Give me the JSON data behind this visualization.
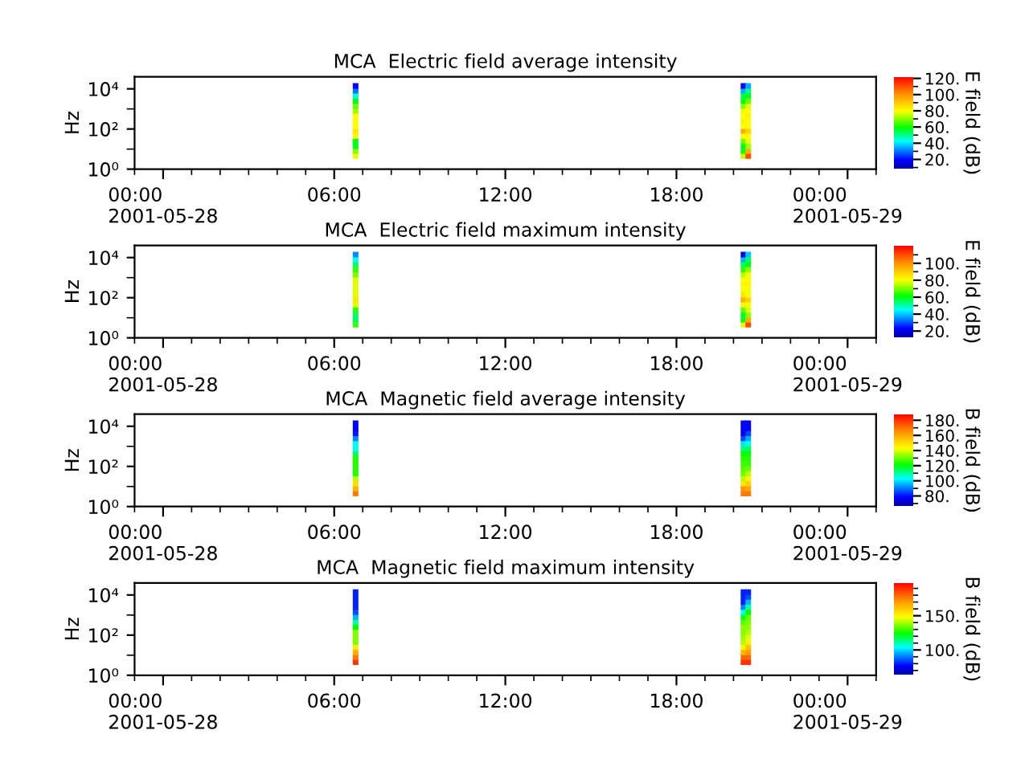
{
  "chart_data": [
    {
      "type": "scatter",
      "title": "MCA  Electric field average intensity",
      "ylabel": "Hz",
      "clabel": "E field (dB)",
      "marker": "square",
      "log": "y",
      "xlim": [
        "2001-05-27T23:00",
        "2001-05-29T01:00"
      ],
      "xticks": [
        {
          "value": "2001-05-27T23:00",
          "label": null
        },
        {
          "value": "2001-05-28T00:00",
          "label": "00:00\n2001-05-28"
        },
        {
          "value": "2001-05-28T01:00",
          "label": null
        },
        {
          "value": "2001-05-28T02:00",
          "label": null
        },
        {
          "value": "2001-05-28T03:00",
          "label": null
        },
        {
          "value": "2001-05-28T04:00",
          "label": null
        },
        {
          "value": "2001-05-28T05:00",
          "label": null
        },
        {
          "value": "2001-05-28T06:00",
          "label": "06:00"
        },
        {
          "value": "2001-05-28T07:00",
          "label": null
        },
        {
          "value": "2001-05-28T08:00",
          "label": null
        },
        {
          "value": "2001-05-28T09:00",
          "label": null
        },
        {
          "value": "2001-05-28T10:00",
          "label": null
        },
        {
          "value": "2001-05-28T11:00",
          "label": null
        },
        {
          "value": "2001-05-28T12:00",
          "label": "12:00"
        },
        {
          "value": "2001-05-28T13:00",
          "label": null
        },
        {
          "value": "2001-05-28T14:00",
          "label": null
        },
        {
          "value": "2001-05-28T15:00",
          "label": null
        },
        {
          "value": "2001-05-28T16:00",
          "label": null
        },
        {
          "value": "2001-05-28T17:00",
          "label": null
        },
        {
          "value": "2001-05-28T18:00",
          "label": "18:00"
        },
        {
          "value": "2001-05-28T19:00",
          "label": null
        },
        {
          "value": "2001-05-28T20:00",
          "label": null
        },
        {
          "value": "2001-05-28T21:00",
          "label": null
        },
        {
          "value": "2001-05-28T22:00",
          "label": null
        },
        {
          "value": "2001-05-28T23:00",
          "label": null
        },
        {
          "value": "2001-05-29T00:00",
          "label": "00:00\n2001-05-29"
        },
        {
          "value": "2001-05-29T01:00",
          "label": null
        }
      ],
      "ylim": [
        1,
        40000
      ],
      "yticks": [
        {
          "value": 1,
          "label": "10⁰"
        },
        {
          "value": 10,
          "label": null
        },
        {
          "value": 100,
          "label": "10²"
        },
        {
          "value": 1000,
          "label": null
        },
        {
          "value": 10000,
          "label": "10⁴"
        }
      ],
      "clim": [
        8,
        122
      ],
      "cticks": [
        {
          "value": 10,
          "label": null
        },
        {
          "value": 20,
          "label": "20."
        },
        {
          "value": 30,
          "label": null
        },
        {
          "value": 40,
          "label": "40."
        },
        {
          "value": 50,
          "label": null
        },
        {
          "value": 60,
          "label": "60."
        },
        {
          "value": 70,
          "label": null
        },
        {
          "value": 80,
          "label": "80."
        },
        {
          "value": 90,
          "label": null
        },
        {
          "value": 100,
          "label": "100."
        },
        {
          "value": 110,
          "label": null
        },
        {
          "value": 120,
          "label": "120."
        }
      ],
      "x": [
        "2001-05-28T06:45",
        "2001-05-28T06:45",
        "2001-05-28T06:45",
        "2001-05-28T06:45",
        "2001-05-28T06:45",
        "2001-05-28T06:45",
        "2001-05-28T06:45",
        "2001-05-28T06:45",
        "2001-05-28T06:45",
        "2001-05-28T06:45",
        "2001-05-28T06:45",
        "2001-05-28T06:45",
        "2001-05-28T06:45",
        "2001-05-28T06:45",
        "2001-05-28T06:45",
        "2001-05-28T20:21",
        "2001-05-28T20:21",
        "2001-05-28T20:21",
        "2001-05-28T20:21",
        "2001-05-28T20:21",
        "2001-05-28T20:21",
        "2001-05-28T20:21",
        "2001-05-28T20:21",
        "2001-05-28T20:21",
        "2001-05-28T20:21",
        "2001-05-28T20:21",
        "2001-05-28T20:21",
        "2001-05-28T20:21",
        "2001-05-28T20:21",
        "2001-05-28T20:21",
        "2001-05-28T20:31",
        "2001-05-28T20:31",
        "2001-05-28T20:31",
        "2001-05-28T20:31",
        "2001-05-28T20:31",
        "2001-05-28T20:31",
        "2001-05-28T20:31",
        "2001-05-28T20:31",
        "2001-05-28T20:31",
        "2001-05-28T20:31",
        "2001-05-28T20:31",
        "2001-05-28T20:31",
        "2001-05-28T20:31",
        "2001-05-28T20:31",
        "2001-05-28T20:31"
      ],
      "values": [
        4.5,
        8,
        14,
        25,
        45,
        80,
        140,
        250,
        450,
        800,
        1400,
        2500,
        4500,
        8000,
        14000,
        4.5,
        8,
        14,
        25,
        45,
        80,
        140,
        250,
        450,
        800,
        1400,
        2500,
        4500,
        8000,
        14000,
        4.5,
        8,
        14,
        25,
        45,
        80,
        140,
        250,
        450,
        800,
        1400,
        2500,
        4500,
        8000,
        14000
      ],
      "cvalues": [
        78,
        70,
        58,
        58,
        80,
        84,
        80,
        80,
        80,
        72,
        68,
        58,
        45,
        30,
        20,
        75,
        60,
        58,
        68,
        80,
        95,
        80,
        82,
        80,
        78,
        70,
        58,
        55,
        35,
        20,
        110,
        95,
        72,
        78,
        80,
        88,
        80,
        80,
        82,
        80,
        78,
        68,
        58,
        50,
        35
      ]
    },
    {
      "type": "scatter",
      "title": "MCA  Electric field maximum intensity",
      "ylabel": "Hz",
      "clabel": "E field (dB)",
      "marker": "square",
      "log": "y",
      "xlim": [
        "2001-05-27T23:00",
        "2001-05-29T01:00"
      ],
      "xticks": [
        {
          "value": "2001-05-27T23:00",
          "label": null
        },
        {
          "value": "2001-05-28T00:00",
          "label": "00:00\n2001-05-28"
        },
        {
          "value": "2001-05-28T01:00",
          "label": null
        },
        {
          "value": "2001-05-28T02:00",
          "label": null
        },
        {
          "value": "2001-05-28T03:00",
          "label": null
        },
        {
          "value": "2001-05-28T04:00",
          "label": null
        },
        {
          "value": "2001-05-28T05:00",
          "label": null
        },
        {
          "value": "2001-05-28T06:00",
          "label": "06:00"
        },
        {
          "value": "2001-05-28T07:00",
          "label": null
        },
        {
          "value": "2001-05-28T08:00",
          "label": null
        },
        {
          "value": "2001-05-28T09:00",
          "label": null
        },
        {
          "value": "2001-05-28T10:00",
          "label": null
        },
        {
          "value": "2001-05-28T11:00",
          "label": null
        },
        {
          "value": "2001-05-28T12:00",
          "label": "12:00"
        },
        {
          "value": "2001-05-28T13:00",
          "label": null
        },
        {
          "value": "2001-05-28T14:00",
          "label": null
        },
        {
          "value": "2001-05-28T15:00",
          "label": null
        },
        {
          "value": "2001-05-28T16:00",
          "label": null
        },
        {
          "value": "2001-05-28T17:00",
          "label": null
        },
        {
          "value": "2001-05-28T18:00",
          "label": "18:00"
        },
        {
          "value": "2001-05-28T19:00",
          "label": null
        },
        {
          "value": "2001-05-28T20:00",
          "label": null
        },
        {
          "value": "2001-05-28T21:00",
          "label": null
        },
        {
          "value": "2001-05-28T22:00",
          "label": null
        },
        {
          "value": "2001-05-28T23:00",
          "label": null
        },
        {
          "value": "2001-05-29T00:00",
          "label": "00:00\n2001-05-29"
        },
        {
          "value": "2001-05-29T01:00",
          "label": null
        }
      ],
      "ylim": [
        1,
        40000
      ],
      "yticks": [
        {
          "value": 1,
          "label": "10⁰"
        },
        {
          "value": 10,
          "label": null
        },
        {
          "value": 100,
          "label": "10²"
        },
        {
          "value": 1000,
          "label": null
        },
        {
          "value": 10000,
          "label": "10⁴"
        }
      ],
      "clim": [
        12,
        121
      ],
      "cticks": [
        {
          "value": 20,
          "label": "20."
        },
        {
          "value": 30,
          "label": null
        },
        {
          "value": 40,
          "label": "40."
        },
        {
          "value": 50,
          "label": null
        },
        {
          "value": 60,
          "label": "60."
        },
        {
          "value": 70,
          "label": null
        },
        {
          "value": 80,
          "label": "80."
        },
        {
          "value": 90,
          "label": null
        },
        {
          "value": 100,
          "label": "100."
        },
        {
          "value": 110,
          "label": null
        }
      ],
      "x": [
        "2001-05-28T06:45",
        "2001-05-28T06:45",
        "2001-05-28T06:45",
        "2001-05-28T06:45",
        "2001-05-28T06:45",
        "2001-05-28T06:45",
        "2001-05-28T06:45",
        "2001-05-28T06:45",
        "2001-05-28T06:45",
        "2001-05-28T06:45",
        "2001-05-28T06:45",
        "2001-05-28T06:45",
        "2001-05-28T06:45",
        "2001-05-28T06:45",
        "2001-05-28T06:45",
        "2001-05-28T20:21",
        "2001-05-28T20:21",
        "2001-05-28T20:21",
        "2001-05-28T20:21",
        "2001-05-28T20:21",
        "2001-05-28T20:21",
        "2001-05-28T20:21",
        "2001-05-28T20:21",
        "2001-05-28T20:21",
        "2001-05-28T20:21",
        "2001-05-28T20:21",
        "2001-05-28T20:21",
        "2001-05-28T20:21",
        "2001-05-28T20:21",
        "2001-05-28T20:21",
        "2001-05-28T20:31",
        "2001-05-28T20:31",
        "2001-05-28T20:31",
        "2001-05-28T20:31",
        "2001-05-28T20:31",
        "2001-05-28T20:31",
        "2001-05-28T20:31",
        "2001-05-28T20:31",
        "2001-05-28T20:31",
        "2001-05-28T20:31",
        "2001-05-28T20:31",
        "2001-05-28T20:31",
        "2001-05-28T20:31",
        "2001-05-28T20:31",
        "2001-05-28T20:31"
      ],
      "values": [
        4.5,
        8,
        14,
        25,
        45,
        80,
        140,
        250,
        450,
        800,
        1400,
        2500,
        4500,
        8000,
        14000,
        4.5,
        8,
        14,
        25,
        45,
        80,
        140,
        250,
        450,
        800,
        1400,
        2500,
        4500,
        8000,
        14000,
        4.5,
        8,
        14,
        25,
        45,
        80,
        140,
        250,
        450,
        800,
        1400,
        2500,
        4500,
        8000,
        14000
      ],
      "cvalues": [
        65,
        55,
        55,
        65,
        78,
        85,
        78,
        78,
        78,
        78,
        70,
        65,
        55,
        45,
        35,
        78,
        60,
        58,
        68,
        82,
        95,
        85,
        80,
        82,
        80,
        75,
        65,
        55,
        38,
        20,
        110,
        95,
        72,
        78,
        80,
        88,
        80,
        80,
        82,
        80,
        80,
        72,
        60,
        55,
        40
      ]
    },
    {
      "type": "scatter",
      "title": "MCA  Magnetic field average intensity",
      "ylabel": "Hz",
      "clabel": "B field (dB)",
      "marker": "square",
      "log": "y",
      "xlim": [
        "2001-05-27T23:00",
        "2001-05-29T01:00"
      ],
      "xticks": [
        {
          "value": "2001-05-27T23:00",
          "label": null
        },
        {
          "value": "2001-05-28T00:00",
          "label": "00:00\n2001-05-28"
        },
        {
          "value": "2001-05-28T01:00",
          "label": null
        },
        {
          "value": "2001-05-28T02:00",
          "label": null
        },
        {
          "value": "2001-05-28T03:00",
          "label": null
        },
        {
          "value": "2001-05-28T04:00",
          "label": null
        },
        {
          "value": "2001-05-28T05:00",
          "label": null
        },
        {
          "value": "2001-05-28T06:00",
          "label": "06:00"
        },
        {
          "value": "2001-05-28T07:00",
          "label": null
        },
        {
          "value": "2001-05-28T08:00",
          "label": null
        },
        {
          "value": "2001-05-28T09:00",
          "label": null
        },
        {
          "value": "2001-05-28T10:00",
          "label": null
        },
        {
          "value": "2001-05-28T11:00",
          "label": null
        },
        {
          "value": "2001-05-28T12:00",
          "label": "12:00"
        },
        {
          "value": "2001-05-28T13:00",
          "label": null
        },
        {
          "value": "2001-05-28T14:00",
          "label": null
        },
        {
          "value": "2001-05-28T15:00",
          "label": null
        },
        {
          "value": "2001-05-28T16:00",
          "label": null
        },
        {
          "value": "2001-05-28T17:00",
          "label": null
        },
        {
          "value": "2001-05-28T18:00",
          "label": "18:00"
        },
        {
          "value": "2001-05-28T19:00",
          "label": null
        },
        {
          "value": "2001-05-28T20:00",
          "label": null
        },
        {
          "value": "2001-05-28T21:00",
          "label": null
        },
        {
          "value": "2001-05-28T22:00",
          "label": null
        },
        {
          "value": "2001-05-28T23:00",
          "label": null
        },
        {
          "value": "2001-05-29T00:00",
          "label": "00:00\n2001-05-29"
        },
        {
          "value": "2001-05-29T01:00",
          "label": null
        }
      ],
      "ylim": [
        1,
        40000
      ],
      "yticks": [
        {
          "value": 1,
          "label": "10⁰"
        },
        {
          "value": 10,
          "label": null
        },
        {
          "value": 100,
          "label": "10²"
        },
        {
          "value": 1000,
          "label": null
        },
        {
          "value": 10000,
          "label": "10⁴"
        }
      ],
      "clim": [
        66,
        188
      ],
      "cticks": [
        {
          "value": 70,
          "label": null
        },
        {
          "value": 80,
          "label": "80."
        },
        {
          "value": 90,
          "label": null
        },
        {
          "value": 100,
          "label": "100."
        },
        {
          "value": 110,
          "label": null
        },
        {
          "value": 120,
          "label": "120."
        },
        {
          "value": 130,
          "label": null
        },
        {
          "value": 140,
          "label": "140."
        },
        {
          "value": 150,
          "label": null
        },
        {
          "value": 160,
          "label": "160."
        },
        {
          "value": 170,
          "label": null
        },
        {
          "value": 180,
          "label": "180."
        }
      ],
      "x": [
        "2001-05-28T06:45",
        "2001-05-28T06:45",
        "2001-05-28T06:45",
        "2001-05-28T06:45",
        "2001-05-28T06:45",
        "2001-05-28T06:45",
        "2001-05-28T06:45",
        "2001-05-28T06:45",
        "2001-05-28T06:45",
        "2001-05-28T06:45",
        "2001-05-28T06:45",
        "2001-05-28T06:45",
        "2001-05-28T06:45",
        "2001-05-28T06:45",
        "2001-05-28T06:45",
        "2001-05-28T20:21",
        "2001-05-28T20:21",
        "2001-05-28T20:21",
        "2001-05-28T20:21",
        "2001-05-28T20:21",
        "2001-05-28T20:21",
        "2001-05-28T20:21",
        "2001-05-28T20:21",
        "2001-05-28T20:21",
        "2001-05-28T20:21",
        "2001-05-28T20:21",
        "2001-05-28T20:21",
        "2001-05-28T20:21",
        "2001-05-28T20:21",
        "2001-05-28T20:21",
        "2001-05-28T20:31",
        "2001-05-28T20:31",
        "2001-05-28T20:31",
        "2001-05-28T20:31",
        "2001-05-28T20:31",
        "2001-05-28T20:31",
        "2001-05-28T20:31",
        "2001-05-28T20:31",
        "2001-05-28T20:31",
        "2001-05-28T20:31",
        "2001-05-28T20:31",
        "2001-05-28T20:31",
        "2001-05-28T20:31",
        "2001-05-28T20:31",
        "2001-05-28T20:31"
      ],
      "values": [
        4.5,
        8,
        14,
        25,
        45,
        80,
        140,
        250,
        450,
        800,
        1400,
        2500,
        4500,
        8000,
        14000,
        4.5,
        8,
        14,
        25,
        45,
        80,
        140,
        250,
        450,
        800,
        1400,
        2500,
        4500,
        8000,
        14000,
        4.5,
        8,
        14,
        25,
        45,
        80,
        140,
        250,
        450,
        800,
        1400,
        2500,
        4500,
        8000,
        14000
      ],
      "cvalues": [
        168,
        158,
        149,
        137,
        124,
        124,
        124,
        124,
        114,
        104,
        104,
        91,
        80,
        78,
        78,
        168,
        165,
        148,
        137,
        130,
        128,
        126,
        124,
        122,
        112,
        100,
        85,
        78,
        78,
        78,
        168,
        160,
        152,
        145,
        137,
        130,
        126,
        124,
        122,
        114,
        104,
        95,
        85,
        78,
        78
      ]
    },
    {
      "type": "scatter",
      "title": "MCA  Magnetic field maximum intensity",
      "ylabel": "Hz",
      "clabel": "B field (dB)",
      "marker": "square",
      "log": "y",
      "xlim": [
        "2001-05-27T23:00",
        "2001-05-29T01:00"
      ],
      "xticks": [
        {
          "value": "2001-05-27T23:00",
          "label": null
        },
        {
          "value": "2001-05-28T00:00",
          "label": "00:00\n2001-05-28"
        },
        {
          "value": "2001-05-28T01:00",
          "label": null
        },
        {
          "value": "2001-05-28T02:00",
          "label": null
        },
        {
          "value": "2001-05-28T03:00",
          "label": null
        },
        {
          "value": "2001-05-28T04:00",
          "label": null
        },
        {
          "value": "2001-05-28T05:00",
          "label": null
        },
        {
          "value": "2001-05-28T06:00",
          "label": "06:00"
        },
        {
          "value": "2001-05-28T07:00",
          "label": null
        },
        {
          "value": "2001-05-28T08:00",
          "label": null
        },
        {
          "value": "2001-05-28T09:00",
          "label": null
        },
        {
          "value": "2001-05-28T10:00",
          "label": null
        },
        {
          "value": "2001-05-28T11:00",
          "label": null
        },
        {
          "value": "2001-05-28T12:00",
          "label": "12:00"
        },
        {
          "value": "2001-05-28T13:00",
          "label": null
        },
        {
          "value": "2001-05-28T14:00",
          "label": null
        },
        {
          "value": "2001-05-28T15:00",
          "label": null
        },
        {
          "value": "2001-05-28T16:00",
          "label": null
        },
        {
          "value": "2001-05-28T17:00",
          "label": null
        },
        {
          "value": "2001-05-28T18:00",
          "label": "18:00"
        },
        {
          "value": "2001-05-28T19:00",
          "label": null
        },
        {
          "value": "2001-05-28T20:00",
          "label": null
        },
        {
          "value": "2001-05-28T21:00",
          "label": null
        },
        {
          "value": "2001-05-28T22:00",
          "label": null
        },
        {
          "value": "2001-05-28T23:00",
          "label": null
        },
        {
          "value": "2001-05-29T00:00",
          "label": "00:00\n2001-05-29"
        },
        {
          "value": "2001-05-29T01:00",
          "label": null
        }
      ],
      "ylim": [
        1,
        40000
      ],
      "yticks": [
        {
          "value": 1,
          "label": "10⁰"
        },
        {
          "value": 10,
          "label": null
        },
        {
          "value": 100,
          "label": "10²"
        },
        {
          "value": 1000,
          "label": null
        },
        {
          "value": 10000,
          "label": "10⁴"
        }
      ],
      "clim": [
        63,
        198
      ],
      "cticks": [
        {
          "value": 70,
          "label": null
        },
        {
          "value": 80,
          "label": null
        },
        {
          "value": 90,
          "label": null
        },
        {
          "value": 100,
          "label": "100."
        },
        {
          "value": 110,
          "label": null
        },
        {
          "value": 120,
          "label": null
        },
        {
          "value": 130,
          "label": null
        },
        {
          "value": 140,
          "label": null
        },
        {
          "value": 150,
          "label": "150."
        },
        {
          "value": 160,
          "label": null
        },
        {
          "value": 170,
          "label": null
        },
        {
          "value": 180,
          "label": null
        },
        {
          "value": 190,
          "label": null
        }
      ],
      "x": [
        "2001-05-28T06:45",
        "2001-05-28T06:45",
        "2001-05-28T06:45",
        "2001-05-28T06:45",
        "2001-05-28T06:45",
        "2001-05-28T06:45",
        "2001-05-28T06:45",
        "2001-05-28T06:45",
        "2001-05-28T06:45",
        "2001-05-28T06:45",
        "2001-05-28T06:45",
        "2001-05-28T06:45",
        "2001-05-28T06:45",
        "2001-05-28T06:45",
        "2001-05-28T06:45",
        "2001-05-28T20:21",
        "2001-05-28T20:21",
        "2001-05-28T20:21",
        "2001-05-28T20:21",
        "2001-05-28T20:21",
        "2001-05-28T20:21",
        "2001-05-28T20:21",
        "2001-05-28T20:21",
        "2001-05-28T20:21",
        "2001-05-28T20:21",
        "2001-05-28T20:21",
        "2001-05-28T20:21",
        "2001-05-28T20:21",
        "2001-05-28T20:21",
        "2001-05-28T20:21",
        "2001-05-28T20:31",
        "2001-05-28T20:31",
        "2001-05-28T20:31",
        "2001-05-28T20:31",
        "2001-05-28T20:31",
        "2001-05-28T20:31",
        "2001-05-28T20:31",
        "2001-05-28T20:31",
        "2001-05-28T20:31",
        "2001-05-28T20:31",
        "2001-05-28T20:31",
        "2001-05-28T20:31",
        "2001-05-28T20:31",
        "2001-05-28T20:31",
        "2001-05-28T20:31"
      ],
      "values": [
        4.5,
        8,
        14,
        25,
        45,
        80,
        140,
        250,
        450,
        800,
        1400,
        2500,
        4500,
        8000,
        14000,
        4.5,
        8,
        14,
        25,
        45,
        80,
        140,
        250,
        450,
        800,
        1400,
        2500,
        4500,
        8000,
        14000,
        4.5,
        8,
        14,
        25,
        45,
        80,
        140,
        250,
        450,
        800,
        1400,
        2500,
        4500,
        8000,
        14000
      ],
      "cvalues": [
        189,
        177,
        166,
        152,
        136,
        136,
        136,
        124,
        112,
        96,
        85,
        80,
        80,
        80,
        80,
        189,
        180,
        165,
        150,
        140,
        138,
        136,
        136,
        132,
        120,
        105,
        90,
        80,
        80,
        80,
        189,
        180,
        170,
        162,
        152,
        145,
        140,
        138,
        136,
        134,
        124,
        110,
        96,
        85,
        80
      ]
    }
  ]
}
